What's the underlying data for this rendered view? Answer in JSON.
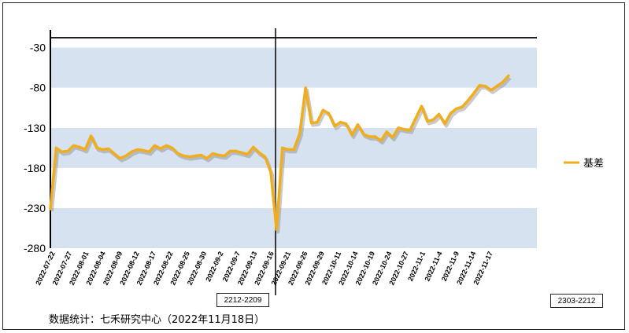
{
  "chart_data": {
    "type": "line",
    "series": [
      {
        "name": "基差",
        "color": "#F0AE1E",
        "values": [
          -231,
          -155,
          -160,
          -159,
          -152,
          -154,
          -157,
          -140,
          -155,
          -157,
          -156,
          -162,
          -168,
          -165,
          -160,
          -157,
          -158,
          -160,
          -152,
          -156,
          -152,
          -155,
          -162,
          -165,
          -166,
          -165,
          -164,
          -168,
          -162,
          -164,
          -165,
          -159,
          -159,
          -161,
          -163,
          -154,
          -161,
          -166,
          -185,
          -257,
          -155,
          -157,
          -157,
          -137,
          -80,
          -124,
          -123,
          -108,
          -112,
          -128,
          -123,
          -125,
          -139,
          -126,
          -138,
          -141,
          -141,
          -146,
          -135,
          -142,
          -130,
          -132,
          -133,
          -118,
          -103,
          -122,
          -120,
          -113,
          -125,
          -112,
          -106,
          -104,
          -96,
          -87,
          -77,
          -78,
          -83,
          -78,
          -73,
          -65
        ]
      }
    ],
    "x_tick_labels": [
      "2022-07-22",
      "2022-07-27",
      "2022-08-01",
      "2022-08-04",
      "2022-08-09",
      "2022-08-12",
      "2022-08-17",
      "2022-08-22",
      "2022-08-25",
      "2022-08-30",
      "2022-09-2",
      "2022-09-7",
      "2022-09-13",
      "2022-09-16",
      "2022-09-21",
      "2022-09-26",
      "2022-09-29",
      "2022-10-11",
      "2022-10-14",
      "2022-10-19",
      "2022-10-24",
      "2022-10-27",
      "2022-11-1",
      "2022-11-4",
      "2022-11-9",
      "2022-11-14",
      "2022-11-17"
    ],
    "y_ticks": [
      -30,
      -80,
      -130,
      -180,
      -230,
      -280
    ],
    "ylim": [
      -280,
      0
    ],
    "legend_position": "right",
    "band_colors": [
      "#D6E2EF",
      "#FFFFFF"
    ],
    "contract_labels": [
      "2212-2209",
      "2303-2212"
    ]
  },
  "source_note": "数据统计：七禾研究中心（2022年11月18日）"
}
